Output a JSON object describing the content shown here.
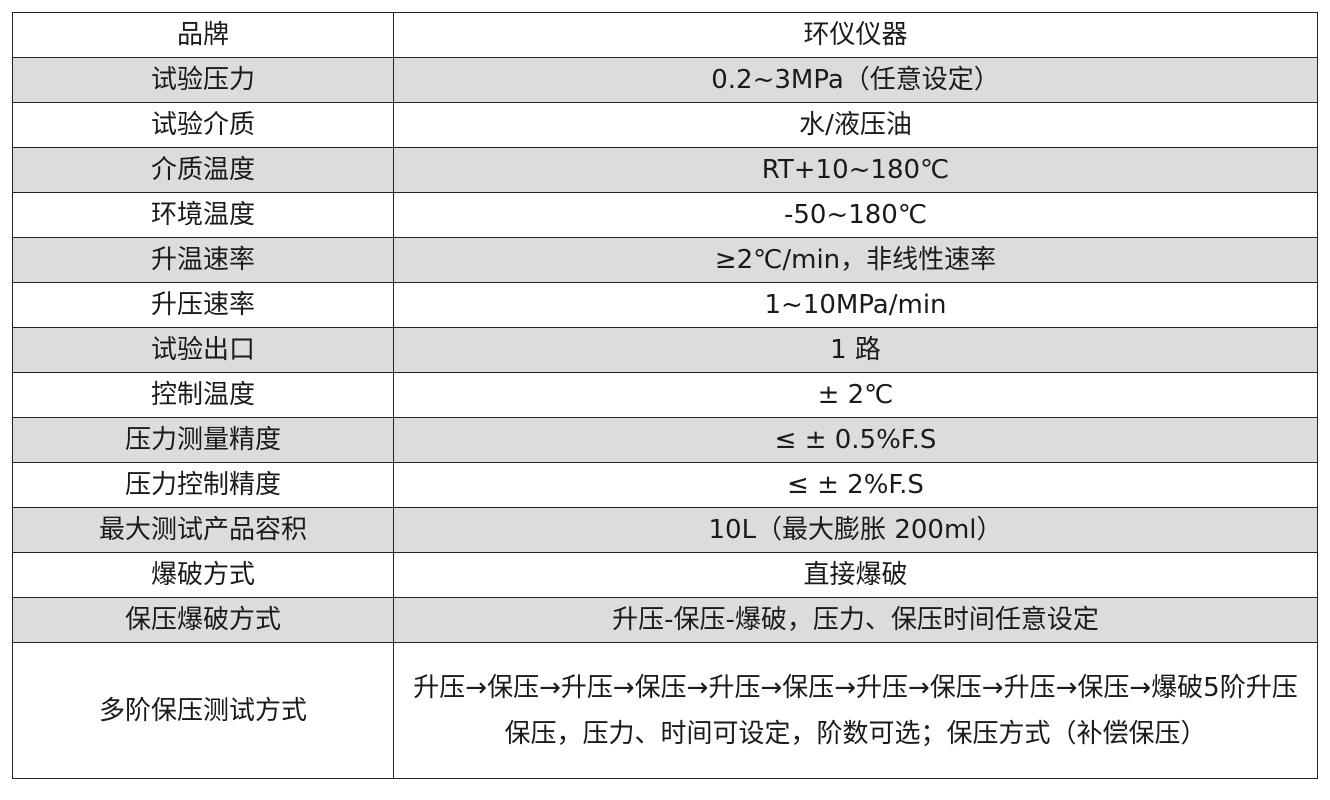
{
  "rows": [
    {
      "key": "品牌",
      "value": "环仪仪器",
      "shaded": false
    },
    {
      "key": "试验压力",
      "value": "0.2~3MPa（任意设定）",
      "shaded": true
    },
    {
      "key": "试验介质",
      "value": "水/液压油",
      "shaded": false
    },
    {
      "key": "介质温度",
      "value": "RT+10~180℃",
      "shaded": true
    },
    {
      "key": "环境温度",
      "value": "-50~180℃",
      "shaded": false
    },
    {
      "key": "升温速率",
      "value": "≥2℃/min，非线性速率",
      "shaded": true
    },
    {
      "key": "升压速率",
      "value": "1~10MPa/min",
      "shaded": false
    },
    {
      "key": "试验出口",
      "value": "1 路",
      "shaded": true
    },
    {
      "key": "控制温度",
      "value": "± 2℃",
      "shaded": false
    },
    {
      "key": "压力测量精度",
      "value": "≤ ± 0.5%F.S",
      "shaded": true
    },
    {
      "key": "压力控制精度",
      "value": "≤ ± 2%F.S",
      "shaded": false
    },
    {
      "key": "最大测试产品容积",
      "value": "10L（最大膨胀 200ml）",
      "shaded": true
    },
    {
      "key": "爆破方式",
      "value": "直接爆破",
      "shaded": false
    },
    {
      "key": "保压爆破方式",
      "value": "升压-保压-爆破，压力、保压时间任意设定",
      "shaded": true
    },
    {
      "key": "多阶保压测试方式",
      "value": "升压→保压→升压→保压→升压→保压→升压→保压→升压→保压→爆破5阶升压保压，压力、时间可设定，阶数可选；保压方式（补偿保压）",
      "shaded": false
    }
  ],
  "colors": {
    "shade": "#dcdcdc",
    "border": "#222222"
  }
}
